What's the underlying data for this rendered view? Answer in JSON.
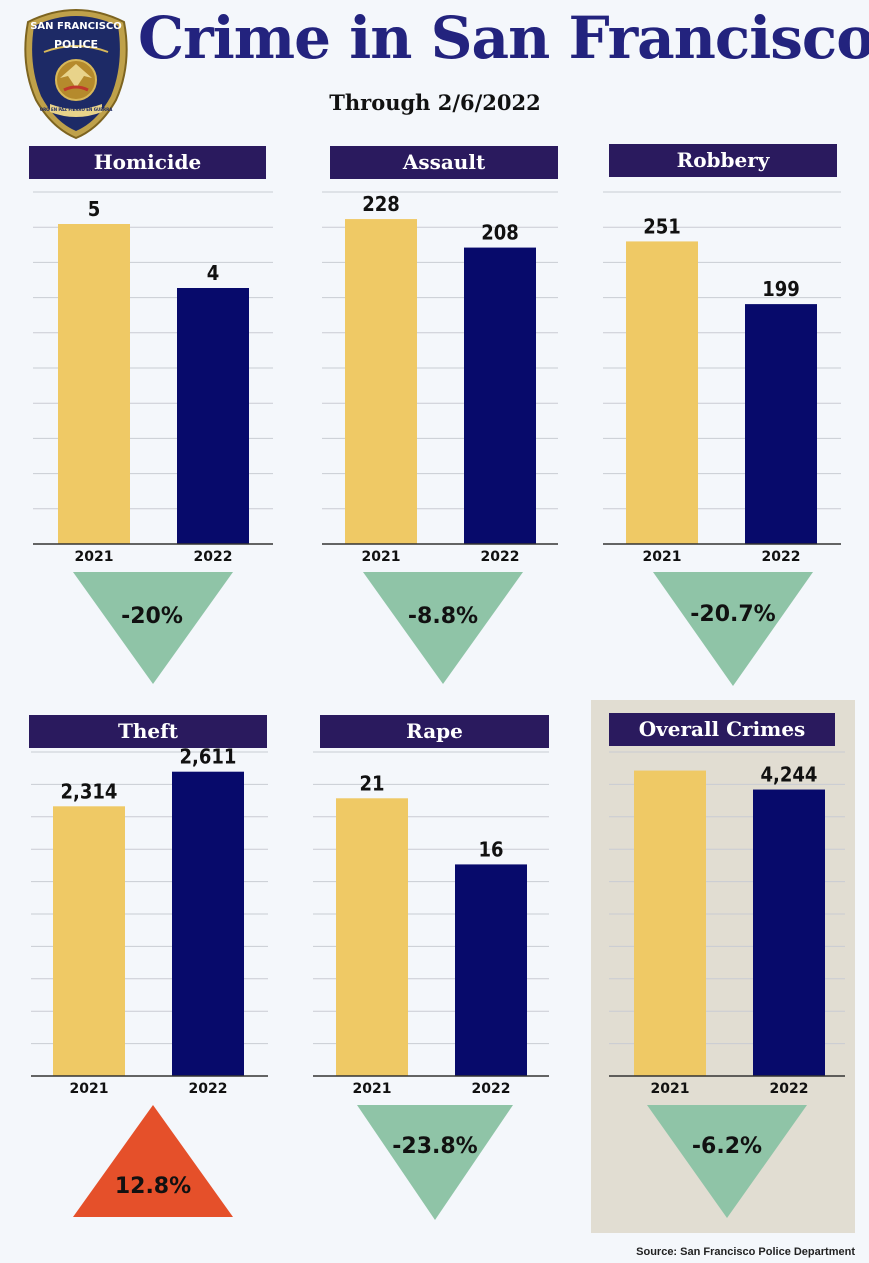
{
  "header": {
    "title": "Crime in San Francisco",
    "subtitle": "Through 2/6/2022"
  },
  "badge": {
    "icon": "police-badge-icon",
    "text_top": "SAN FRANCISCO",
    "text_mid": "POLICE",
    "text_ribbon": "ORO EN PAZ FIERRO EN GUERRA"
  },
  "colors": {
    "bar_2021": "#efc965",
    "bar_2022": "#070a6b",
    "decrease": "#8fc4a7",
    "increase": "#e5502a",
    "title_bg": "#2a1a5e",
    "title_text": "#23237e",
    "overall_bg": "#e1ddd2"
  },
  "chart_data": [
    {
      "type": "bar",
      "title": "Homicide",
      "categories": [
        "2021",
        "2022"
      ],
      "values": [
        5,
        4
      ],
      "value_labels": [
        "5",
        "4"
      ],
      "ylim": [
        0,
        5.5
      ],
      "change": "-20%",
      "direction": "down"
    },
    {
      "type": "bar",
      "title": "Assault",
      "categories": [
        "2021",
        "2022"
      ],
      "values": [
        228,
        208
      ],
      "value_labels": [
        "228",
        "208"
      ],
      "ylim": [
        0,
        247
      ],
      "change": "-8.8%",
      "direction": "down"
    },
    {
      "type": "bar",
      "title": "Robbery",
      "categories": [
        "2021",
        "2022"
      ],
      "values": [
        251,
        199
      ],
      "value_labels": [
        "251",
        "199"
      ],
      "ylim": [
        0,
        292
      ],
      "change": "-20.7%",
      "direction": "down"
    },
    {
      "type": "bar",
      "title": "Theft",
      "categories": [
        "2021",
        "2022"
      ],
      "values": [
        2314,
        2611
      ],
      "value_labels": [
        "2,314",
        "2,611"
      ],
      "ylim": [
        0,
        2780
      ],
      "change": "12.8%",
      "direction": "up"
    },
    {
      "type": "bar",
      "title": "Rape",
      "categories": [
        "2021",
        "2022"
      ],
      "values": [
        21,
        16
      ],
      "value_labels": [
        "21",
        "16"
      ],
      "ylim": [
        0,
        24.5
      ],
      "change": "-23.8%",
      "direction": "down"
    },
    {
      "type": "bar",
      "title": "Overall Crimes",
      "categories": [
        "2021",
        "2022"
      ],
      "values": [
        4525,
        4244
      ],
      "value_labels": [
        "",
        "4,244"
      ],
      "ylim": [
        0,
        4800
      ],
      "change": "-6.2%",
      "direction": "down"
    }
  ],
  "footer": {
    "source": "Source: San Francisco Police Department"
  }
}
